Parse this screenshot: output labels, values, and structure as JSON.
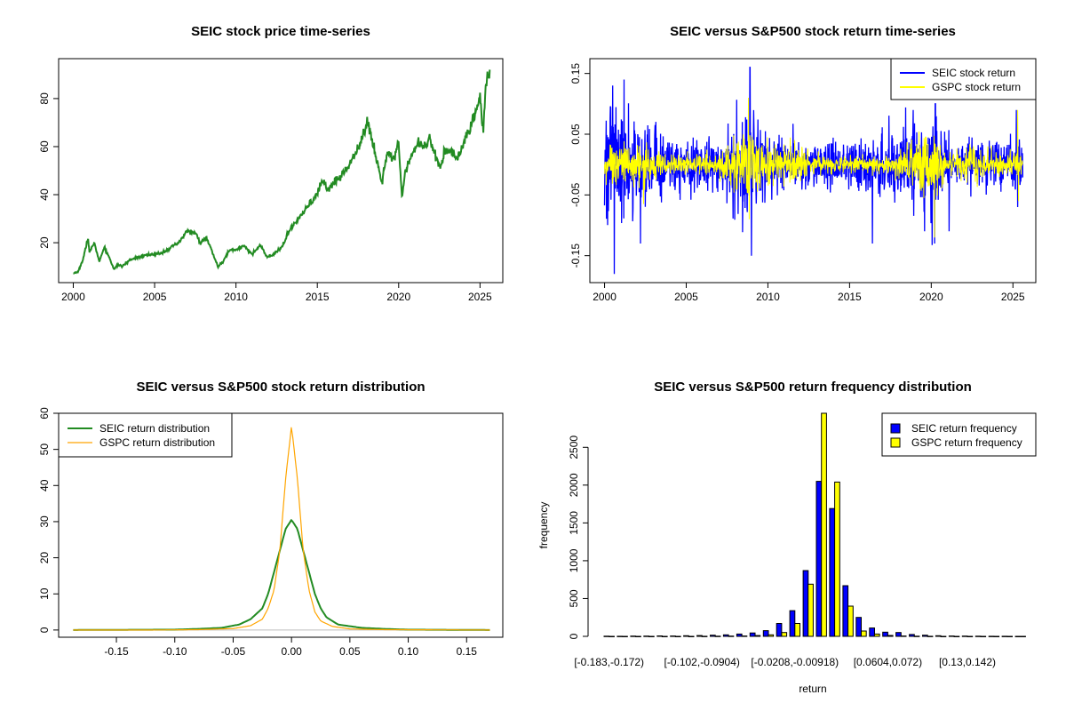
{
  "chart_data": [
    {
      "type": "line",
      "title": "SEIC stock price time-series",
      "xlabel": "",
      "ylabel": "",
      "xlim": [
        2000,
        2025.6
      ],
      "ylim": [
        5,
        95
      ],
      "x_ticks": [
        2000,
        2005,
        2010,
        2015,
        2020,
        2025
      ],
      "y_ticks": [
        20,
        40,
        60,
        80
      ],
      "colors": {
        "price": "#228B22"
      },
      "series": [
        {
          "x": [
            2000.0,
            2000.3,
            2000.6,
            2000.9,
            2001.0,
            2001.3,
            2001.6,
            2001.9,
            2002.2,
            2002.5,
            2002.8,
            2003.0,
            2003.5,
            2004.0,
            2004.5,
            2005.0,
            2005.5,
            2006.0,
            2006.5,
            2007.0,
            2007.5,
            2007.8,
            2008.2,
            2008.6,
            2008.9,
            2009.2,
            2009.6,
            2010.0,
            2010.5,
            2011.0,
            2011.5,
            2011.9,
            2012.3,
            2012.8,
            2013.2,
            2013.6,
            2014.0,
            2014.5,
            2015.0,
            2015.3,
            2015.7,
            2016.0,
            2016.5,
            2017.0,
            2017.5,
            2017.9,
            2018.1,
            2018.4,
            2018.8,
            2018.95,
            2019.3,
            2019.7,
            2020.0,
            2020.2,
            2020.4,
            2020.8,
            2021.2,
            2021.6,
            2021.9,
            2022.2,
            2022.6,
            2022.8,
            2023.2,
            2023.6,
            2023.9,
            2024.2,
            2024.5,
            2024.8,
            2025.0,
            2025.2,
            2025.35,
            2025.5,
            2025.6
          ],
          "y": [
            7,
            8,
            13,
            22,
            16,
            20,
            12,
            18,
            14,
            9,
            11,
            10,
            13,
            14,
            15,
            15,
            16,
            18,
            20,
            25,
            24,
            20,
            22,
            15,
            10,
            12,
            17,
            17,
            19,
            15,
            19,
            14,
            15,
            18,
            24,
            28,
            31,
            36,
            40,
            46,
            42,
            45,
            48,
            53,
            60,
            66,
            70,
            62,
            50,
            45,
            58,
            55,
            62,
            38,
            50,
            57,
            62,
            60,
            64,
            56,
            52,
            58,
            58,
            55,
            60,
            65,
            70,
            75,
            82,
            66,
            85,
            92,
            90
          ]
        }
      ]
    },
    {
      "type": "line",
      "title": "SEIC versus S&P500 stock return time-series",
      "xlabel": "",
      "ylabel": "",
      "xlim": [
        2000,
        2025.6
      ],
      "ylim": [
        -0.19,
        0.17
      ],
      "x_ticks": [
        2000,
        2005,
        2010,
        2015,
        2020,
        2025
      ],
      "y_ticks": [
        -0.15,
        -0.05,
        0.05,
        0.15
      ],
      "legend_position": "top-right",
      "colors": {
        "SEIC stock return": "#0000FF",
        "GSPC stock return": "#FFFF00"
      },
      "series": [
        {
          "name": "SEIC stock return",
          "volatility": [
            [
              2000,
              0.045
            ],
            [
              2001,
              0.05
            ],
            [
              2002,
              0.035
            ],
            [
              2004,
              0.022
            ],
            [
              2007,
              0.02
            ],
            [
              2008.8,
              0.05
            ],
            [
              2009.5,
              0.03
            ],
            [
              2011,
              0.022
            ],
            [
              2013,
              0.018
            ],
            [
              2016,
              0.02
            ],
            [
              2020.2,
              0.04
            ],
            [
              2021,
              0.018
            ],
            [
              2025.6,
              0.02
            ]
          ],
          "spikes": [
            [
              2000.6,
              -0.18
            ],
            [
              2000.5,
              0.13
            ],
            [
              2001.2,
              0.14
            ],
            [
              2008.9,
              0.16
            ],
            [
              2009.0,
              -0.15
            ],
            [
              2002.2,
              -0.13
            ],
            [
              2016.4,
              -0.13
            ],
            [
              2020.2,
              -0.13
            ],
            [
              2020.25,
              0.1
            ],
            [
              2018.9,
              0.09
            ],
            [
              2025.2,
              0.09
            ],
            [
              2025.3,
              -0.07
            ],
            [
              2019.6,
              -0.11
            ],
            [
              2021.1,
              -0.11
            ]
          ]
        },
        {
          "name": "GSPC stock return",
          "volatility": [
            [
              2000,
              0.014
            ],
            [
              2002,
              0.018
            ],
            [
              2004,
              0.008
            ],
            [
              2007,
              0.009
            ],
            [
              2008.8,
              0.035
            ],
            [
              2009.5,
              0.018
            ],
            [
              2011.7,
              0.016
            ],
            [
              2013,
              0.008
            ],
            [
              2017,
              0.006
            ],
            [
              2020.2,
              0.03
            ],
            [
              2021,
              0.01
            ],
            [
              2022.5,
              0.015
            ],
            [
              2024,
              0.008
            ],
            [
              2025.6,
              0.011
            ]
          ],
          "spikes": [
            [
              2008.8,
              0.11
            ],
            [
              2008.85,
              -0.09
            ],
            [
              2020.2,
              0.09
            ],
            [
              2020.21,
              -0.12
            ],
            [
              2025.3,
              0.09
            ],
            [
              2025.35,
              -0.06
            ]
          ]
        }
      ]
    },
    {
      "type": "line",
      "title": "SEIC versus S&P500 stock return distribution",
      "xlabel": "",
      "ylabel": "",
      "xlim": [
        -0.19,
        0.17
      ],
      "ylim": [
        -2,
        60
      ],
      "x_ticks": [
        -0.15,
        -0.1,
        -0.05,
        0.0,
        0.05,
        0.1,
        0.15
      ],
      "x_tick_labels": [
        "-0.15",
        "-0.10",
        "-0.05",
        "0.00",
        "0.05",
        "0.10",
        "0.15"
      ],
      "y_ticks": [
        0,
        10,
        20,
        30,
        40,
        50,
        60
      ],
      "legend_position": "top-left",
      "colors": {
        "SEIC return distribution": "#228B22",
        "GSPC return distribution": "#FFA500",
        "baseline": "#BEBEBE"
      },
      "series": [
        {
          "name": "SEIC return distribution",
          "x": [
            -0.187,
            -0.1,
            -0.08,
            -0.06,
            -0.045,
            -0.035,
            -0.025,
            -0.02,
            -0.015,
            -0.01,
            -0.005,
            0.0,
            0.005,
            0.01,
            0.015,
            0.02,
            0.025,
            0.03,
            0.04,
            0.06,
            0.08,
            0.1,
            0.17
          ],
          "y": [
            0,
            0.1,
            0.3,
            0.6,
            1.5,
            3,
            6,
            10,
            16,
            22,
            28,
            30.5,
            28,
            22,
            16,
            10,
            6,
            3.5,
            1.5,
            0.6,
            0.3,
            0.1,
            0
          ]
        },
        {
          "name": "GSPC return distribution",
          "x": [
            -0.187,
            -0.12,
            -0.08,
            -0.05,
            -0.035,
            -0.025,
            -0.02,
            -0.015,
            -0.01,
            -0.005,
            0.0,
            0.005,
            0.01,
            0.015,
            0.02,
            0.025,
            0.035,
            0.05,
            0.08,
            0.17
          ],
          "y": [
            0,
            0,
            0.1,
            0.4,
            1.2,
            3,
            6,
            11,
            22,
            42,
            56.5,
            42,
            22,
            11,
            5,
            2.5,
            1,
            0.3,
            0.1,
            0
          ]
        }
      ]
    },
    {
      "type": "bar",
      "title": "SEIC versus S&P500 return frequency distribution",
      "xlabel": "return",
      "ylabel": "frequency",
      "ylim": [
        0,
        2950
      ],
      "y_ticks": [
        0,
        500,
        1000,
        1500,
        2000,
        2500
      ],
      "legend_position": "top-right",
      "tick_label_indices": [
        0,
        7,
        14,
        21,
        27
      ],
      "tick_labels": [
        "[-0.183,-0.172)",
        "[-0.102,-0.0904)",
        "[-0.0208,-0.00918)",
        "[0.0604,0.072)",
        "[0.13,0.142)"
      ],
      "colors": {
        "SEIC return frequency": "#0000FF",
        "GSPC return frequency": "#FFFF00"
      },
      "series": [
        {
          "name": "SEIC return frequency",
          "values": [
            2,
            1,
            3,
            4,
            6,
            5,
            8,
            10,
            15,
            20,
            30,
            45,
            75,
            170,
            340,
            870,
            2050,
            1690,
            670,
            250,
            110,
            55,
            50,
            25,
            15,
            8,
            5,
            3,
            2,
            1,
            1,
            0
          ]
        },
        {
          "name": "GSPC return frequency",
          "values": [
            0,
            0,
            0,
            0,
            0,
            0,
            0,
            1,
            2,
            3,
            5,
            10,
            20,
            50,
            170,
            690,
            2950,
            2040,
            400,
            70,
            30,
            12,
            5,
            2,
            1,
            0,
            0,
            0,
            0,
            0,
            0,
            0
          ]
        }
      ]
    }
  ]
}
